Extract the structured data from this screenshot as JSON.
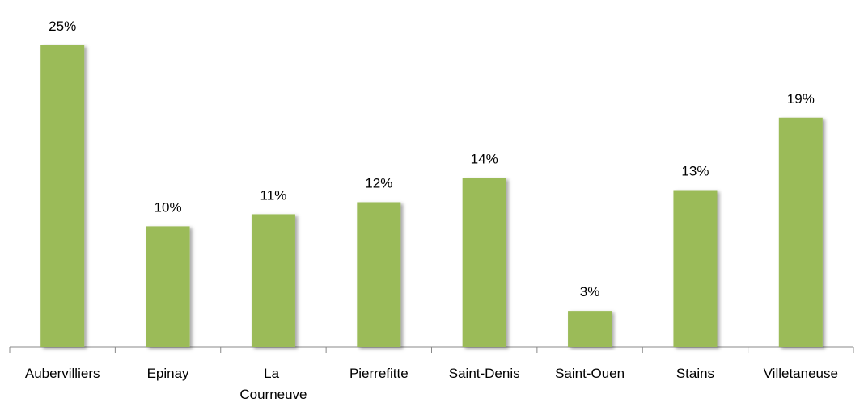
{
  "chart_data": {
    "type": "bar",
    "categories": [
      "Aubervilliers",
      "Epinay",
      "La Courneuve",
      "Pierrefitte",
      "Saint-Denis",
      "Saint-Ouen",
      "Stains",
      "Villetaneuse"
    ],
    "values": [
      25,
      10,
      11,
      12,
      14,
      3,
      13,
      19
    ],
    "value_labels": [
      "25%",
      "10%",
      "11%",
      "12%",
      "14%",
      "3%",
      "13%",
      "19%"
    ],
    "color": "#9bbb59"
  }
}
